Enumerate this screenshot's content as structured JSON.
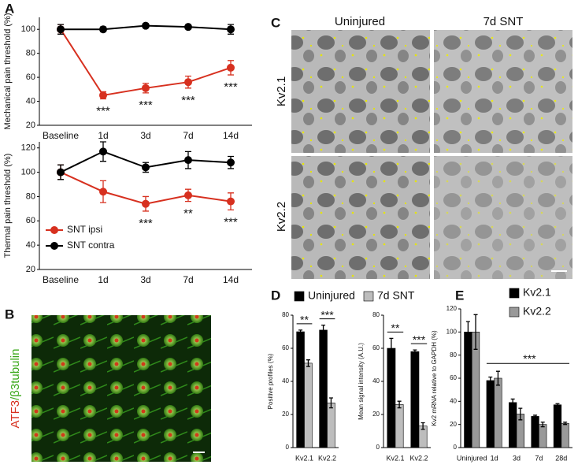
{
  "panels": [
    "A",
    "B",
    "C",
    "D",
    "E"
  ],
  "images": {
    "B": {
      "label_red": "ATF3",
      "label_green": "/β3tubulin"
    },
    "C": {
      "columns": [
        "Uninjured",
        "7d SNT"
      ],
      "rows": [
        "Kv2.1",
        "Kv2.2"
      ]
    }
  },
  "chart_data": [
    {
      "type": "line",
      "ylabel": "Mechanical pain threshold (%)",
      "categories": [
        "Baseline",
        "1d",
        "3d",
        "7d",
        "14d"
      ],
      "ylim": [
        20,
        110
      ],
      "yticks": [
        20,
        40,
        60,
        80,
        100
      ],
      "series": [
        {
          "color": "#d7301f",
          "values": [
            100,
            45,
            51,
            56,
            68
          ],
          "errors": [
            4,
            3,
            4,
            5,
            6
          ]
        },
        {
          "color": "#000000",
          "values": [
            100,
            100,
            103,
            102,
            100
          ],
          "errors": [
            4,
            2,
            1,
            1,
            4
          ]
        }
      ],
      "annotations": [
        null,
        "***",
        "***",
        "***",
        "***"
      ]
    },
    {
      "type": "line",
      "ylabel": "Thermal pain threshold (%)",
      "categories": [
        "Baseline",
        "1d",
        "3d",
        "7d",
        "14d"
      ],
      "ylim": [
        20,
        125
      ],
      "yticks": [
        20,
        40,
        60,
        80,
        100,
        120
      ],
      "legend": "lower left",
      "series": [
        {
          "name": "SNT ipsi",
          "color": "#d7301f",
          "values": [
            100,
            84,
            74,
            81,
            76
          ],
          "errors": [
            6,
            9,
            6,
            5,
            7
          ]
        },
        {
          "name": "SNT contra",
          "color": "#000000",
          "values": [
            100,
            117,
            104,
            110,
            108
          ],
          "errors": [
            6,
            8,
            4,
            7,
            5
          ]
        }
      ],
      "annotations": [
        null,
        null,
        "***",
        "**",
        "***"
      ]
    },
    {
      "type": "bar",
      "ylabel": "Positive profiles (%)",
      "categories": [
        "Kv2.1",
        "Kv2.2"
      ],
      "ylim": [
        0,
        80
      ],
      "yticks": [
        0,
        20,
        40,
        60,
        80
      ],
      "legend": "top",
      "series": [
        {
          "name": "Uninjured",
          "color": "#000000",
          "values": [
            70,
            71
          ],
          "errors": [
            1,
            3
          ]
        },
        {
          "name": "7d SNT",
          "color": "#bdbdbd",
          "values": [
            51,
            27
          ],
          "errors": [
            2,
            3
          ]
        }
      ],
      "annotations": [
        "**",
        "***"
      ]
    },
    {
      "type": "bar",
      "ylabel": "Mean signal intensity (A.U.)",
      "categories": [
        "Kv2.1",
        "Kv2.2"
      ],
      "ylim": [
        0,
        80
      ],
      "yticks": [
        0,
        20,
        40,
        60,
        80
      ],
      "series": [
        {
          "color": "#000000",
          "values": [
            60,
            58
          ],
          "errors": [
            6,
            1
          ]
        },
        {
          "color": "#bdbdbd",
          "values": [
            26,
            13
          ],
          "errors": [
            2,
            2
          ]
        }
      ],
      "annotations": [
        "**",
        "***"
      ]
    },
    {
      "type": "bar",
      "ylabel": "Kv2 mRNA relative to GAPDH (%)",
      "categories": [
        "Uninjured",
        "1d",
        "3d",
        "7d",
        "28d"
      ],
      "ylim": [
        0,
        120
      ],
      "yticks": [
        0,
        20,
        40,
        60,
        80,
        100,
        120
      ],
      "legend": "upper right",
      "series": [
        {
          "name": "Kv2.1",
          "color": "#000000",
          "values": [
            100,
            58,
            39,
            27,
            37
          ],
          "errors": [
            9,
            3,
            3,
            1,
            1
          ]
        },
        {
          "name": "Kv2.2",
          "color": "#999999",
          "values": [
            100,
            60,
            29,
            20,
            21
          ],
          "errors": [
            15,
            6,
            5,
            2,
            1
          ]
        }
      ],
      "annotation": "***"
    }
  ]
}
